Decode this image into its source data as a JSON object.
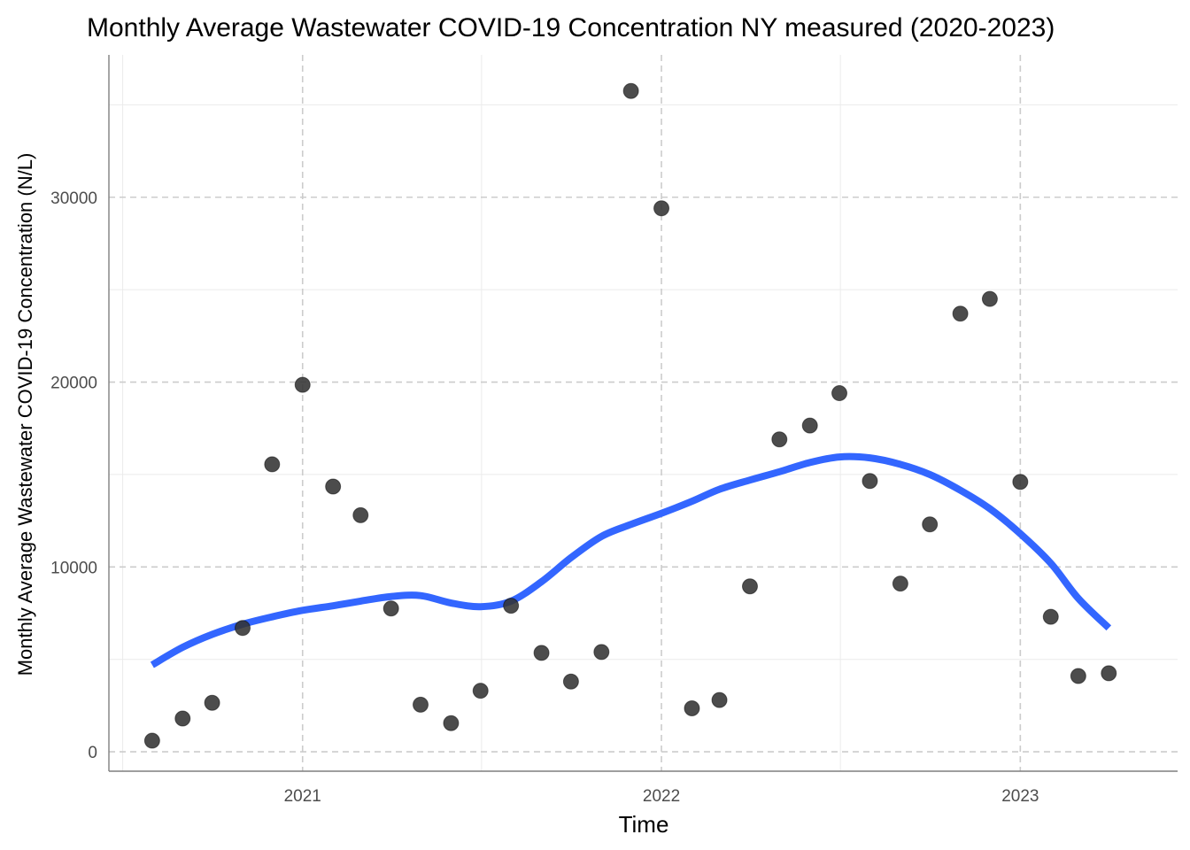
{
  "chart_data": {
    "type": "scatter",
    "title": "Monthly Average Wastewater COVID-19 Concentration NY measured (2020-2023)",
    "xlabel": "Time",
    "ylabel": "Monthly Average Wastewater COVID-19 Concentration (N/L)",
    "xlim": [
      "2020-06-18",
      "2023-06-10"
    ],
    "ylim": [
      -1050,
      37700
    ],
    "x_ticks": [
      "2021-01-01",
      "2022-01-01",
      "2023-01-01"
    ],
    "x_tick_labels": [
      "2021",
      "2022",
      "2023"
    ],
    "y_ticks": [
      0,
      10000,
      20000,
      30000
    ],
    "y_tick_labels": [
      "0",
      "10000",
      "20000",
      "30000"
    ],
    "grid": true,
    "legend": "none",
    "colors": {
      "points": "#333333",
      "smooth_line": "#3366ff",
      "major_grid": "#cccccc",
      "minor_grid": "#ebebeb",
      "axis_line": "#7f7f7f"
    },
    "series": [
      {
        "type": "scatter",
        "x": [
          "2020-08-01",
          "2020-09-01",
          "2020-10-01",
          "2020-11-01",
          "2020-12-01",
          "2021-01-01",
          "2021-02-01",
          "2021-03-01",
          "2021-04-01",
          "2021-05-01",
          "2021-06-01",
          "2021-07-01",
          "2021-08-01",
          "2021-09-01",
          "2021-10-01",
          "2021-11-01",
          "2021-12-01",
          "2022-01-01",
          "2022-02-01",
          "2022-03-01",
          "2022-04-01",
          "2022-05-01",
          "2022-06-01",
          "2022-07-01",
          "2022-08-01",
          "2022-09-01",
          "2022-10-01",
          "2022-11-01",
          "2022-12-01",
          "2023-01-01",
          "2023-02-01",
          "2023-03-01",
          "2023-04-01"
        ],
        "values": [
          600,
          1800,
          2650,
          6700,
          15550,
          19850,
          14350,
          12800,
          7750,
          2550,
          1550,
          3300,
          7900,
          5350,
          3800,
          5400,
          35750,
          29400,
          2350,
          2800,
          8950,
          16900,
          17650,
          19400,
          14650,
          9100,
          12300,
          23700,
          24500,
          14600,
          7300,
          4100,
          4250
        ]
      },
      {
        "type": "line",
        "x": [
          "2020-08-01",
          "2020-09-01",
          "2020-10-01",
          "2020-11-01",
          "2020-12-01",
          "2021-01-01",
          "2021-02-01",
          "2021-03-01",
          "2021-04-01",
          "2021-05-01",
          "2021-06-01",
          "2021-07-01",
          "2021-08-01",
          "2021-09-01",
          "2021-10-01",
          "2021-11-01",
          "2021-12-01",
          "2022-01-01",
          "2022-02-01",
          "2022-03-01",
          "2022-04-01",
          "2022-05-01",
          "2022-06-01",
          "2022-07-01",
          "2022-08-01",
          "2022-09-01",
          "2022-10-01",
          "2022-11-01",
          "2022-12-01",
          "2023-01-01",
          "2023-02-01",
          "2023-03-01",
          "2023-04-01"
        ],
        "values": [
          4700,
          5650,
          6350,
          6900,
          7300,
          7650,
          7900,
          8150,
          8400,
          8450,
          8050,
          7850,
          8150,
          9200,
          10500,
          11650,
          12300,
          12900,
          13550,
          14200,
          14700,
          15150,
          15650,
          15950,
          15900,
          15550,
          15000,
          14150,
          13150,
          11800,
          10200,
          8300,
          6700
        ]
      }
    ]
  }
}
